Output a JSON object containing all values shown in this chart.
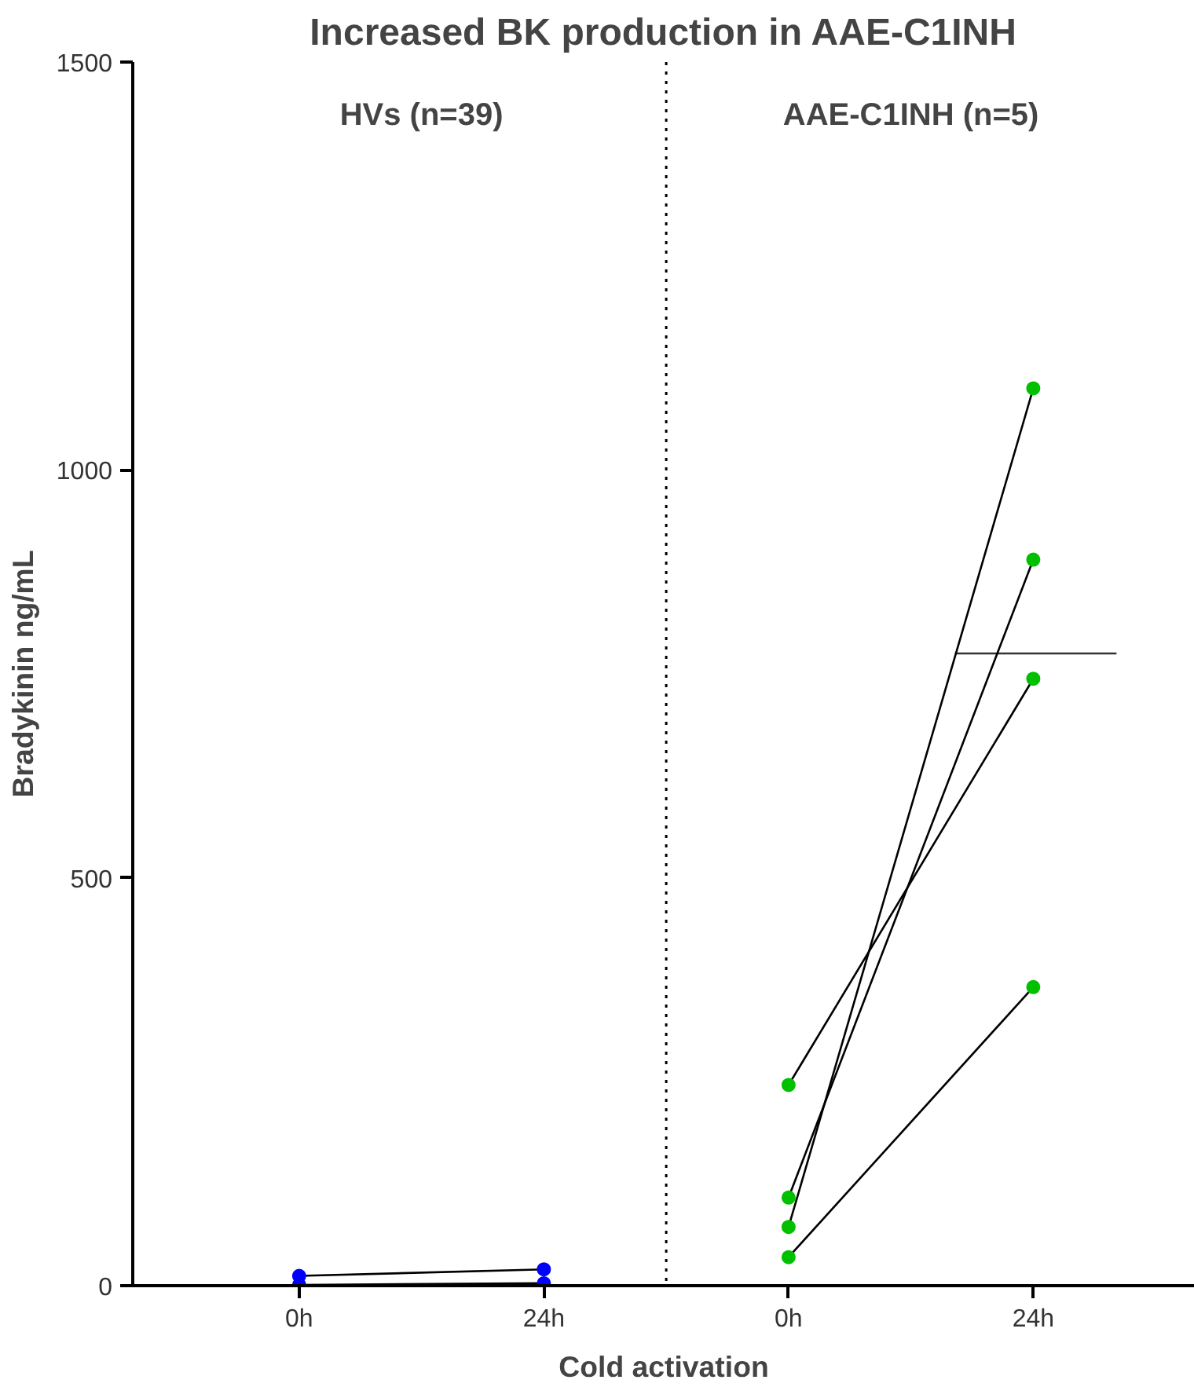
{
  "chart_data": {
    "type": "line",
    "title": "Increased BK production in AAE-C1INH",
    "xlabel": "Cold activation",
    "ylabel": "Bradykinin ng/mL",
    "categories": [
      "0h",
      "24h",
      "0h",
      "24h"
    ],
    "ylim": [
      0,
      1500
    ],
    "yticks": [
      0,
      500,
      1000,
      1500
    ],
    "grid": false,
    "marker": "circle",
    "line_style": "solid",
    "annotations": [
      "HVs (n=39)",
      "AAE-C1INH (n=5)"
    ],
    "ref_lines": [
      {
        "axis": "y",
        "value": 775,
        "label": null,
        "color": "#333333"
      }
    ],
    "series": [
      {
        "values": [
          12,
          20,
          null,
          null
        ],
        "color": "#0000ff"
      },
      {
        "values": [
          1,
          3,
          null,
          null
        ],
        "color": "#0000ff"
      },
      {
        "values": [
          null,
          null,
          246,
          744
        ],
        "color": "#00c000"
      },
      {
        "values": [
          null,
          null,
          108,
          890
        ],
        "color": "#00c000"
      },
      {
        "values": [
          null,
          null,
          72,
          1100
        ],
        "color": "#00c000"
      },
      {
        "values": [
          null,
          null,
          35,
          366
        ],
        "color": "#00c000"
      }
    ]
  }
}
